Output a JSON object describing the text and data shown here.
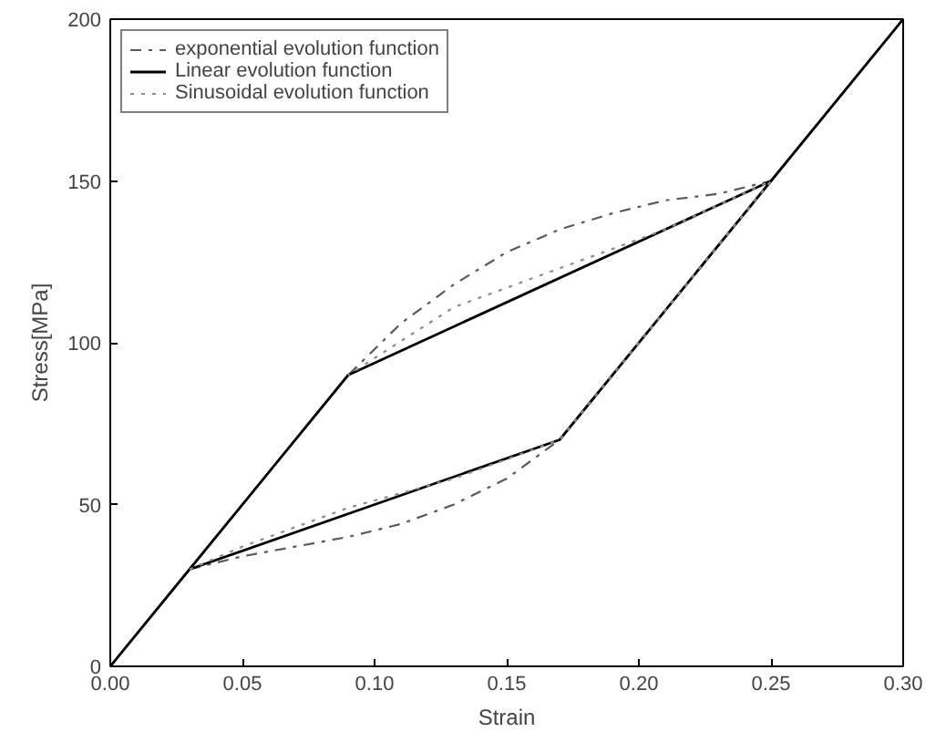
{
  "chart_data": {
    "type": "line",
    "xlabel": "Strain",
    "ylabel": "Stress[MPa]",
    "xlim": [
      0,
      0.3
    ],
    "ylim": [
      0,
      200
    ],
    "xticks": [
      {
        "value": 0,
        "label": "0.00"
      },
      {
        "value": 0.05,
        "label": "0.05"
      },
      {
        "value": 0.1,
        "label": "0.10"
      },
      {
        "value": 0.15,
        "label": "0.15"
      },
      {
        "value": 0.2,
        "label": "0.20"
      },
      {
        "value": 0.25,
        "label": "0.25"
      },
      {
        "value": 0.3,
        "label": "0.30"
      }
    ],
    "yticks": [
      0,
      50,
      100,
      150,
      200
    ],
    "grid": false,
    "legend": "top left",
    "marker": "none",
    "series": [
      {
        "name": "exponential evolution function",
        "color": "#5a5a5a",
        "line_style": "dashdot",
        "x": [
          0.03,
          0.05,
          0.07,
          0.09,
          0.11,
          0.13,
          0.15,
          0.17,
          0.25,
          0.23,
          0.21,
          0.19,
          0.17,
          0.15,
          0.13,
          0.11,
          0.09
        ],
        "values": [
          30,
          34,
          37,
          40,
          44,
          50,
          58,
          70,
          150,
          146,
          144,
          140,
          135,
          128,
          118,
          106,
          90
        ]
      },
      {
        "name": "Linear evolution function",
        "color": "#000000",
        "line_style": "solid",
        "x": [
          0.3,
          0.25,
          0.09,
          0.03,
          0,
          0.03,
          0.17,
          0.25
        ],
        "values": [
          200,
          150,
          90,
          30,
          0,
          30,
          70,
          150
        ]
      },
      {
        "name": "Sinusoidal evolution function",
        "color": "#8c8c8c",
        "line_style": "dotted",
        "x": [
          0.03,
          0.05,
          0.09,
          0.13,
          0.17,
          0.25,
          0.21,
          0.17,
          0.13,
          0.09
        ],
        "values": [
          30,
          37,
          49,
          58,
          70,
          150,
          135,
          123,
          111,
          90
        ]
      }
    ]
  }
}
